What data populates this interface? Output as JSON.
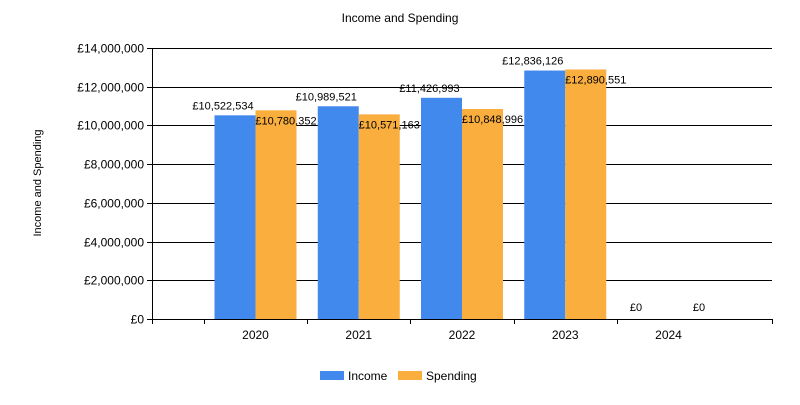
{
  "chart_data": {
    "type": "bar",
    "title": "Income and Spending",
    "xlabel": "",
    "ylabel": "Income and Spending",
    "categories": [
      "2020",
      "2021",
      "2022",
      "2023",
      "2024"
    ],
    "series": [
      {
        "name": "Income",
        "color": "#4289ee",
        "values": [
          10522534,
          10989521,
          11426993,
          12836126,
          0
        ],
        "labels": [
          "£10,522,534",
          "£10,989,521",
          "£11,426,993",
          "£12,836,126",
          "£0"
        ]
      },
      {
        "name": "Spending",
        "color": "#f9ae3e",
        "values": [
          10780352,
          10571163,
          10848996,
          12890551,
          0
        ],
        "labels": [
          "£10,780,352",
          "£10,571,163",
          "£10,848,996",
          "£12,890,551",
          "£0"
        ]
      }
    ],
    "ylim": [
      0,
      14000000
    ],
    "yticks": [
      0,
      2000000,
      4000000,
      6000000,
      8000000,
      10000000,
      12000000,
      14000000
    ],
    "ytick_labels": [
      "£0",
      "£2,000,000",
      "£4,000,000",
      "£6,000,000",
      "£8,000,000",
      "£10,000,000",
      "£12,000,000",
      "£14,000,000"
    ],
    "grid": true,
    "legend_position": "bottom"
  }
}
